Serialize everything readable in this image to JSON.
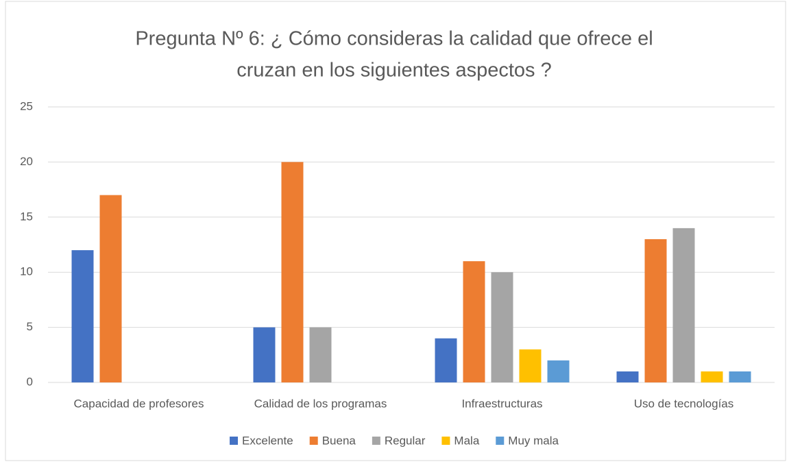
{
  "chart_data": {
    "type": "bar",
    "title": [
      "Pregunta Nº 6: ¿ Cómo consideras la calidad que ofrece el",
      "cruzan en los siguientes aspectos ?"
    ],
    "categories": [
      "Capacidad de profesores",
      "Calidad de los programas",
      "Infraestructuras",
      "Uso de tecnologías"
    ],
    "series": [
      {
        "name": "Excelente",
        "color": "#4472c4",
        "values": [
          12,
          5,
          4,
          1
        ]
      },
      {
        "name": "Buena",
        "color": "#ed7d31",
        "values": [
          17,
          20,
          11,
          13
        ]
      },
      {
        "name": "Regular",
        "color": "#a5a5a5",
        "values": [
          0,
          5,
          10,
          14
        ]
      },
      {
        "name": "Mala",
        "color": "#ffc000",
        "values": [
          0,
          0,
          3,
          1
        ]
      },
      {
        "name": "Muy mala",
        "color": "#5b9bd5",
        "values": [
          0,
          0,
          2,
          1
        ]
      }
    ],
    "ylim": [
      0,
      25
    ],
    "yticks": [
      0,
      5,
      10,
      15,
      20,
      25
    ],
    "grid": true,
    "legend": "bottom"
  }
}
